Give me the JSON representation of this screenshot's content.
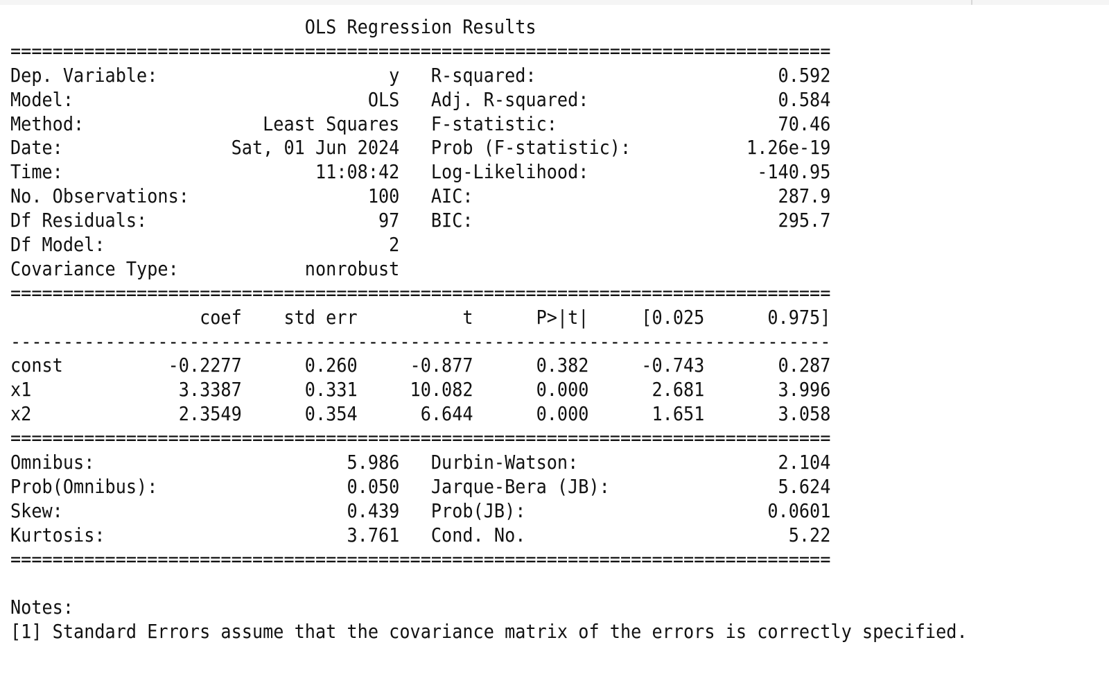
{
  "title": "OLS Regression Results",
  "separators": {
    "double": "==============================================================================",
    "single": "------------------------------------------------------------------------------"
  },
  "model_info": {
    "left": [
      {
        "label": "Dep. Variable:",
        "value": "y"
      },
      {
        "label": "Model:",
        "value": "OLS"
      },
      {
        "label": "Method:",
        "value": "Least Squares"
      },
      {
        "label": "Date:",
        "value": "Sat, 01 Jun 2024"
      },
      {
        "label": "Time:",
        "value": "11:08:42"
      },
      {
        "label": "No. Observations:",
        "value": "100"
      },
      {
        "label": "Df Residuals:",
        "value": "97"
      },
      {
        "label": "Df Model:",
        "value": "2"
      },
      {
        "label": "Covariance Type:",
        "value": "nonrobust"
      }
    ],
    "right": [
      {
        "label": "R-squared:",
        "value": "0.592"
      },
      {
        "label": "Adj. R-squared:",
        "value": "0.584"
      },
      {
        "label": "F-statistic:",
        "value": "70.46"
      },
      {
        "label": "Prob (F-statistic):",
        "value": "1.26e-19"
      },
      {
        "label": "Log-Likelihood:",
        "value": "-140.95"
      },
      {
        "label": "AIC:",
        "value": "287.9"
      },
      {
        "label": "BIC:",
        "value": "295.7"
      }
    ]
  },
  "coef_table": {
    "headers": [
      "",
      "coef",
      "std err",
      "t",
      "P>|t|",
      "[0.025",
      "0.975]"
    ],
    "rows": [
      [
        "const",
        "-0.2277",
        "0.260",
        "-0.877",
        "0.382",
        "-0.743",
        "0.287"
      ],
      [
        "x1",
        "3.3387",
        "0.331",
        "10.082",
        "0.000",
        "2.681",
        "3.996"
      ],
      [
        "x2",
        "2.3549",
        "0.354",
        "6.644",
        "0.000",
        "1.651",
        "3.058"
      ]
    ]
  },
  "diagnostics": {
    "left": [
      {
        "label": "Omnibus:",
        "value": "5.986"
      },
      {
        "label": "Prob(Omnibus):",
        "value": "0.050"
      },
      {
        "label": "Skew:",
        "value": "0.439"
      },
      {
        "label": "Kurtosis:",
        "value": "3.761"
      }
    ],
    "right": [
      {
        "label": "Durbin-Watson:",
        "value": "2.104"
      },
      {
        "label": "Jarque-Bera (JB):",
        "value": "5.624"
      },
      {
        "label": "Prob(JB):",
        "value": "0.0601"
      },
      {
        "label": "Cond. No.",
        "value": "5.22"
      }
    ]
  },
  "notes": {
    "heading": "Notes:",
    "items": [
      "[1] Standard Errors assume that the covariance matrix of the errors is correctly specified."
    ]
  }
}
